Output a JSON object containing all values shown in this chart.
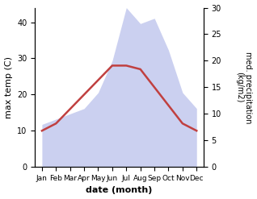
{
  "months": [
    "Jan",
    "Feb",
    "Mar",
    "Apr",
    "May",
    "Jun",
    "Jul",
    "Aug",
    "Sep",
    "Oct",
    "Nov",
    "Dec"
  ],
  "max_temp": [
    10,
    12,
    16,
    20,
    24,
    28,
    28,
    27,
    22,
    17,
    12,
    10
  ],
  "precipitation": [
    8,
    9,
    10,
    11,
    14,
    20,
    30,
    27,
    28,
    22,
    14,
    11
  ],
  "temp_color": "#c04040",
  "precip_color": "#b0b8e8",
  "precip_fill_alpha": 0.65,
  "xlabel": "date (month)",
  "ylabel_left": "max temp (C)",
  "ylabel_right": "med. precipitation\n(kg/m2)",
  "ylim_left": [
    0,
    44
  ],
  "ylim_right": [
    0,
    30
  ],
  "yticks_left": [
    0,
    10,
    20,
    30,
    40
  ],
  "yticks_right": [
    0,
    5,
    10,
    15,
    20,
    25,
    30
  ],
  "background_color": "#ffffff",
  "line_width": 1.8
}
